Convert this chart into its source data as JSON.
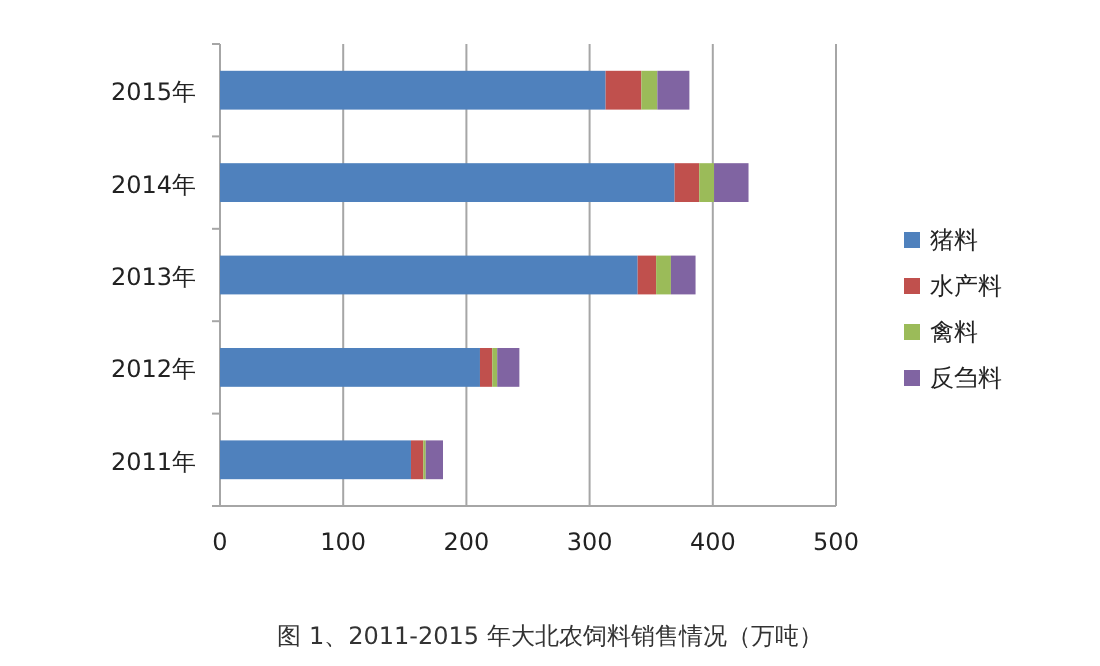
{
  "chart_data": {
    "type": "bar",
    "orientation": "horizontal",
    "stacked": true,
    "categories": [
      "2015年",
      "2014年",
      "2013年",
      "2012年",
      "2011年"
    ],
    "series": [
      {
        "name": "猪料",
        "color": "#4f81bd",
        "values": [
          313,
          369,
          339,
          211,
          155
        ]
      },
      {
        "name": "水产料",
        "color": "#c0504d",
        "values": [
          29,
          20,
          15,
          10,
          10
        ]
      },
      {
        "name": "禽料",
        "color": "#9bbb59",
        "values": [
          13,
          12,
          12,
          4,
          2
        ]
      },
      {
        "name": "反刍料",
        "color": "#8064a2",
        "values": [
          26,
          28,
          20,
          18,
          14
        ]
      }
    ],
    "xlim": [
      0,
      500
    ],
    "xticks": [
      0,
      100,
      200,
      300,
      400,
      500
    ],
    "grid": "x",
    "legend": "right",
    "annotations": [
      "图 1、2011-2015 年大北农饲料销售情况（万吨）"
    ]
  }
}
